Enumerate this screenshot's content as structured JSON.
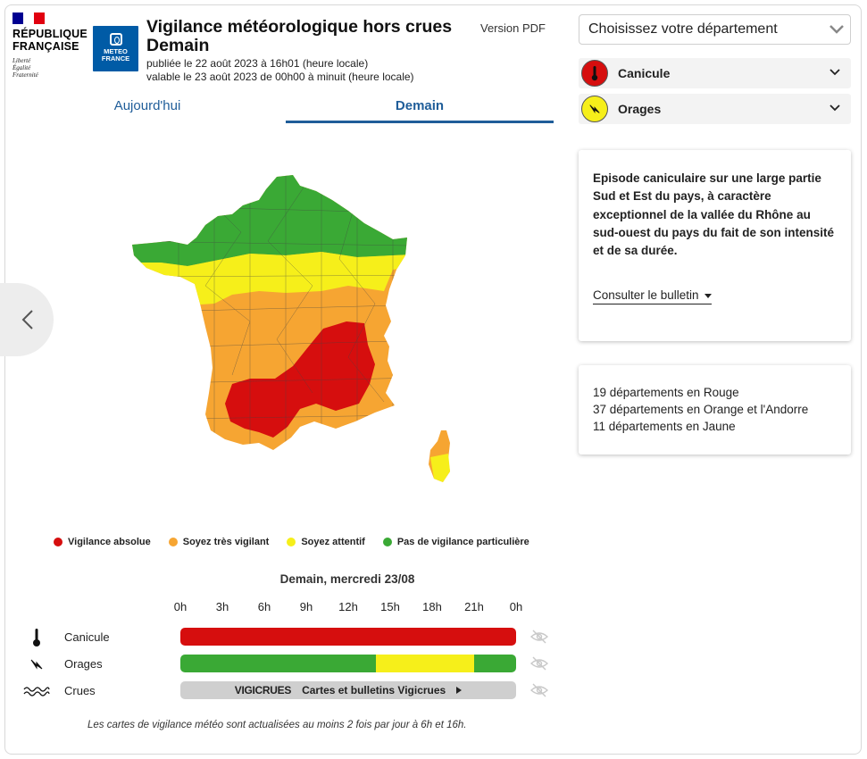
{
  "header": {
    "republic_name_line1": "RÉPUBLIQUE",
    "republic_name_line2": "FRANÇAISE",
    "motto": [
      "Liberté",
      "Égalité",
      "Fraternité"
    ],
    "meteo_logo_line1": "METEO",
    "meteo_logo_line2": "FRANCE",
    "title_line1": "Vigilance météorologique hors crues",
    "title_line2": "Demain",
    "published": "publiée le 22 août 2023 à 16h01 (heure locale)",
    "valid": "valable le 23 août 2023 de 00h00 à minuit (heure locale)",
    "pdf_link": "Version PDF"
  },
  "tabs": {
    "today": "Aujourd'hui",
    "tomorrow": "Demain",
    "active": "tomorrow"
  },
  "legend": [
    {
      "label": "Vigilance absolue",
      "color": "#d60e0e"
    },
    {
      "label": "Soyez très vigilant",
      "color": "#f6a532"
    },
    {
      "label": "Soyez attentif",
      "color": "#f6ef1a"
    },
    {
      "label": "Pas de vigilance particulière",
      "color": "#3aa935"
    }
  ],
  "timeline": {
    "date": "Demain, mercredi 23/08",
    "hours": [
      "0h",
      "3h",
      "6h",
      "9h",
      "12h",
      "15h",
      "18h",
      "21h",
      "0h"
    ],
    "rows": {
      "canicule": {
        "label": "Canicule",
        "icon": "thermometer-icon",
        "segments": [
          {
            "from": 0,
            "to": 24,
            "color": "#d60e0e"
          }
        ]
      },
      "orages": {
        "label": "Orages",
        "icon": "lightning-icon",
        "segments": [
          {
            "from": 0,
            "to": 14,
            "color": "#3aa935"
          },
          {
            "from": 14,
            "to": 21,
            "color": "#f6ef1a"
          },
          {
            "from": 21,
            "to": 24,
            "color": "#3aa935"
          }
        ]
      },
      "crues": {
        "label": "Crues",
        "icon": "waves-icon",
        "vigicrues_logo": "VIGICRUES",
        "link_label": "Cartes et bulletins Vigicrues"
      }
    }
  },
  "footnote": "Les cartes de vigilance météo sont actualisées au moins 2 fois par jour à 6h et 16h.",
  "sidebar": {
    "department_select_placeholder": "Choisissez votre département",
    "risks": [
      {
        "label": "Canicule",
        "icon": "thermometer-icon",
        "color": "#d60e0e"
      },
      {
        "label": "Orages",
        "icon": "lightning-icon",
        "color": "#f6ef1a"
      }
    ],
    "bulletin_text": "Episode caniculaire sur une large partie Sud et Est du pays, à caractère exceptionnel de la vallée du Rhône au sud-ouest du pays du fait de son intensité et de sa durée.",
    "bulletin_link": "Consulter le bulletin",
    "counts": [
      "19 départements en Rouge",
      "37 départements en Orange et l'Andorre",
      "11 départements en Jaune"
    ]
  }
}
